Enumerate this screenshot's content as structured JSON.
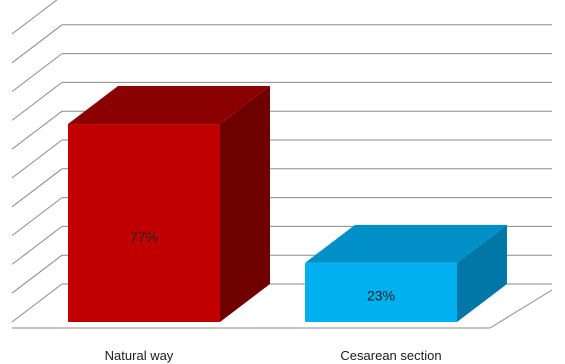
{
  "chart_data": {
    "type": "bar",
    "style": "3d-column",
    "categories": [
      "Natural way",
      "Cesarean section"
    ],
    "values": [
      77,
      23
    ],
    "data_labels": [
      "77%",
      "23%"
    ],
    "colors": [
      {
        "front": "#c00000",
        "top": "#8b0000",
        "side": "#6e0000"
      },
      {
        "front": "#00b0f0",
        "top": "#0090c8",
        "side": "#0077a6"
      }
    ],
    "ylim": [
      0,
      100
    ],
    "gridlines": true,
    "gridline_count": 11,
    "legend": "none"
  }
}
